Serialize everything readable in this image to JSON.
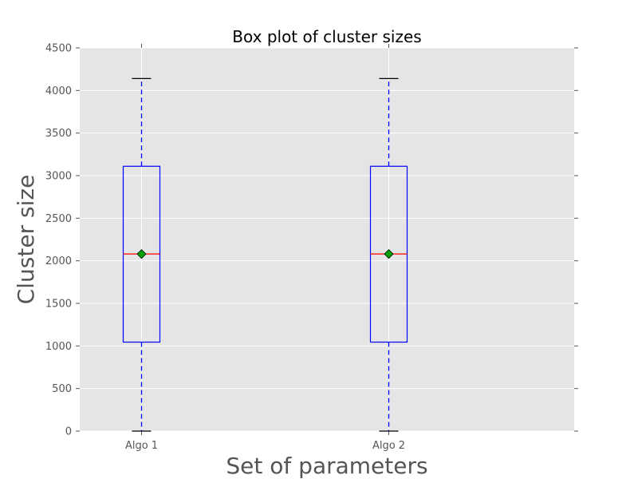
{
  "chart_data": {
    "type": "box",
    "title": "Box plot of cluster sizes",
    "xlabel": "Set of parameters",
    "ylabel": "Cluster size",
    "categories": [
      "Algo 1",
      "Algo 2"
    ],
    "ylim": [
      0,
      4500
    ],
    "yticks": [
      0,
      500,
      1000,
      1500,
      2000,
      2500,
      3000,
      3500,
      4000,
      4500
    ],
    "grid": true,
    "boxes": [
      {
        "label": "Algo 1",
        "whisker_low": 0,
        "q1": 1045,
        "median": 2080,
        "mean": 2080,
        "q3": 3110,
        "whisker_high": 4140
      },
      {
        "label": "Algo 2",
        "whisker_low": 0,
        "q1": 1045,
        "median": 2080,
        "mean": 2080,
        "q3": 3110,
        "whisker_high": 4140
      }
    ],
    "colors": {
      "plot_background": "#e5e5e5",
      "grid": "#ffffff",
      "box": "#0000ff",
      "whisker": "#0000ff",
      "median": "#ff0000",
      "mean_marker": "#00a000",
      "cap": "#000000"
    }
  }
}
